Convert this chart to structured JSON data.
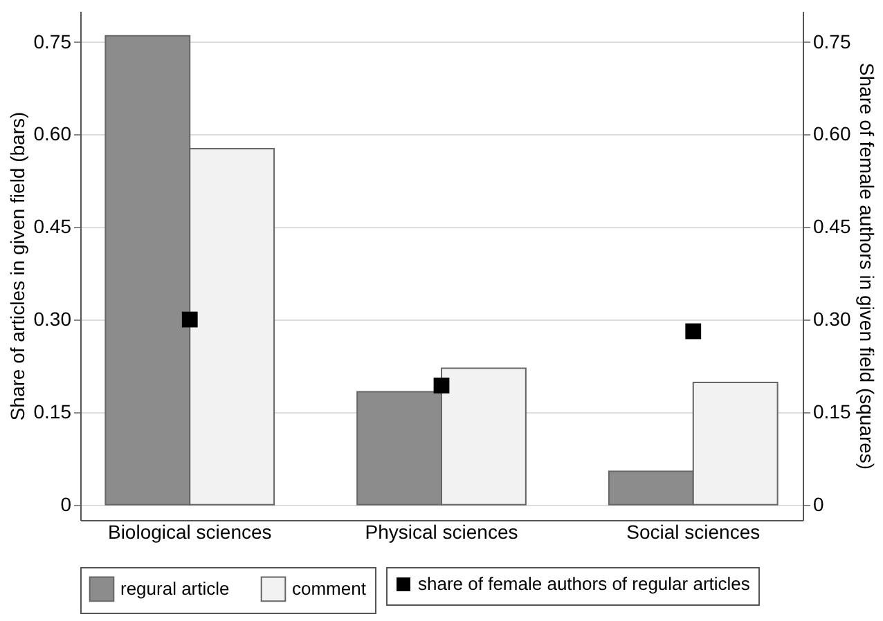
{
  "chart_data": {
    "type": "bar",
    "categories": [
      "Biological sciences",
      "Physical sciences",
      "Social sciences"
    ],
    "ylabel": "Share of articles in given field (bars)",
    "y2label": "Share of female authors in given field (squares)",
    "series": [
      {
        "name": "regural article",
        "color": "#8c8c8c",
        "values": [
          0.76,
          0.183,
          0.054
        ]
      },
      {
        "name": "comment",
        "color": "#f2f2f2",
        "values": [
          0.577,
          0.221,
          0.198
        ]
      },
      {
        "name": "share of female authors of regular articles",
        "type": "scatter",
        "axis": "y2",
        "marker": "square",
        "color": "#000000",
        "values": [
          0.3,
          0.193,
          0.281
        ]
      }
    ],
    "ylim": [
      -0.025,
      0.8
    ],
    "yticks": [
      0,
      {
        "value": 0.15,
        "label": "0.15"
      },
      {
        "value": 0.3,
        "label": "0.30"
      },
      {
        "value": 0.45,
        "label": "0.45"
      },
      {
        "value": 0.6,
        "label": "0.60"
      },
      {
        "value": 0.75,
        "label": "0.75"
      }
    ],
    "y2lim": [
      -0.025,
      0.8
    ],
    "y2ticks": [
      0,
      {
        "value": 0.15,
        "label": "0.15"
      },
      {
        "value": 0.3,
        "label": "0.30"
      },
      {
        "value": 0.45,
        "label": "0.45"
      },
      {
        "value": 0.6,
        "label": "0.60"
      },
      {
        "value": 0.75,
        "label": "0.75"
      }
    ],
    "grid": "y",
    "legend": "bottom"
  }
}
